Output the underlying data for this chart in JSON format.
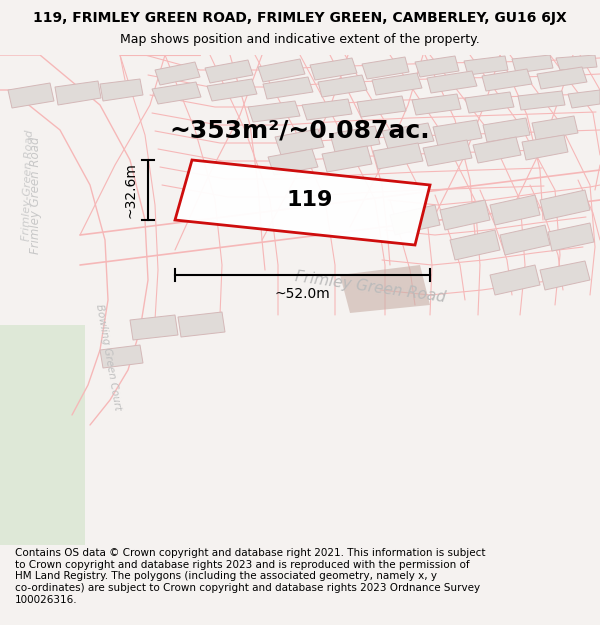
{
  "title_line1": "119, FRIMLEY GREEN ROAD, FRIMLEY GREEN, CAMBERLEY, GU16 6JX",
  "title_line2": "Map shows position and indicative extent of the property.",
  "footer_text": "Contains OS data © Crown copyright and database right 2021. This information is subject\nto Crown copyright and database rights 2023 and is reproduced with the permission of\nHM Land Registry. The polygons (including the associated geometry, namely x, y\nco-ordinates) are subject to Crown copyright and database rights 2023 Ordnance Survey\n100026316.",
  "area_label": "~353m²/~0.087ac.",
  "width_label": "~52.0m",
  "height_label": "~32.6m",
  "plot_number": "119",
  "fig_bg": "#f5f2f0",
  "map_bg": "#ffffff",
  "road_line_color": "#f5b8b8",
  "building_fill": "#e0dbd8",
  "building_edge": "#d4b8b8",
  "plot_edge": "#cc0000",
  "road_label_color": "#bbbbbb",
  "left_road_label_color": "#c8c8c8",
  "bowling_label_color": "#c0c0c0",
  "brown_patch_color": "#c8b0a8",
  "green_patch_color": "#c8e0c0",
  "title_fontsize": 10,
  "subtitle_fontsize": 9,
  "footer_fontsize": 7.5,
  "area_fontsize": 18,
  "plot_num_fontsize": 16,
  "road_name_fontsize": 11,
  "dim_fontsize": 10
}
